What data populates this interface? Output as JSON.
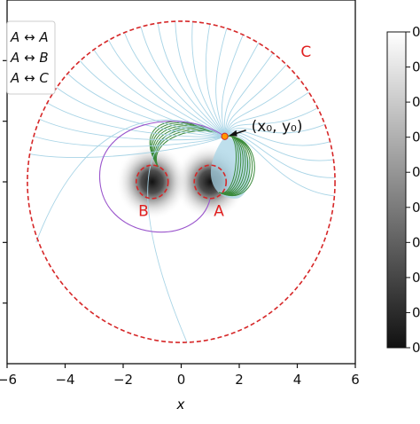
{
  "chart_data": {
    "type": "line",
    "xlabel": "x",
    "xlim": [
      -6,
      6
    ],
    "ylim": [
      -6,
      6
    ],
    "x_ticks": [
      -6,
      -4,
      -2,
      0,
      2,
      4,
      6
    ],
    "x_tick_labels": [
      "−6",
      "−4",
      "−2",
      "0",
      "2",
      "4",
      "6"
    ],
    "y_ticks": [
      -4,
      -2,
      0,
      2,
      4
    ],
    "legend": {
      "placement": "top-left",
      "entries": [
        "A ↔ A",
        "A ↔ B",
        "A ↔ C"
      ],
      "colors": [
        "#a8d4e6",
        "#3a8a3a",
        "#9a55cc"
      ]
    },
    "circles": [
      {
        "label": "C",
        "center": [
          0,
          0
        ],
        "radius": 5.3,
        "color": "#d62728"
      },
      {
        "label": "A",
        "center": [
          1,
          0
        ],
        "radius": 0.55,
        "color": "#d62728"
      },
      {
        "label": "B",
        "center": [
          -1,
          0
        ],
        "radius": 0.55,
        "color": "#d62728"
      }
    ],
    "wells": [
      {
        "center": [
          1,
          0
        ]
      },
      {
        "center": [
          -1,
          0
        ]
      }
    ],
    "start_point": {
      "label": "(x₀, y₀)",
      "x": 1.5,
      "y": 1.5,
      "color": "#ff9900"
    },
    "series": [
      {
        "name": "A ↔ A",
        "color": "#a8d4e6"
      },
      {
        "name": "A ↔ B",
        "color": "#3a8a3a"
      },
      {
        "name": "A ↔ C",
        "color": "#9a55cc"
      }
    ],
    "colorbar": {
      "colors": [
        "#111111",
        "#ffffff"
      ],
      "tick_labels": [
        "0",
        "0",
        "0",
        "0",
        "0",
        "0",
        "0",
        "0",
        "0",
        "0"
      ]
    }
  }
}
